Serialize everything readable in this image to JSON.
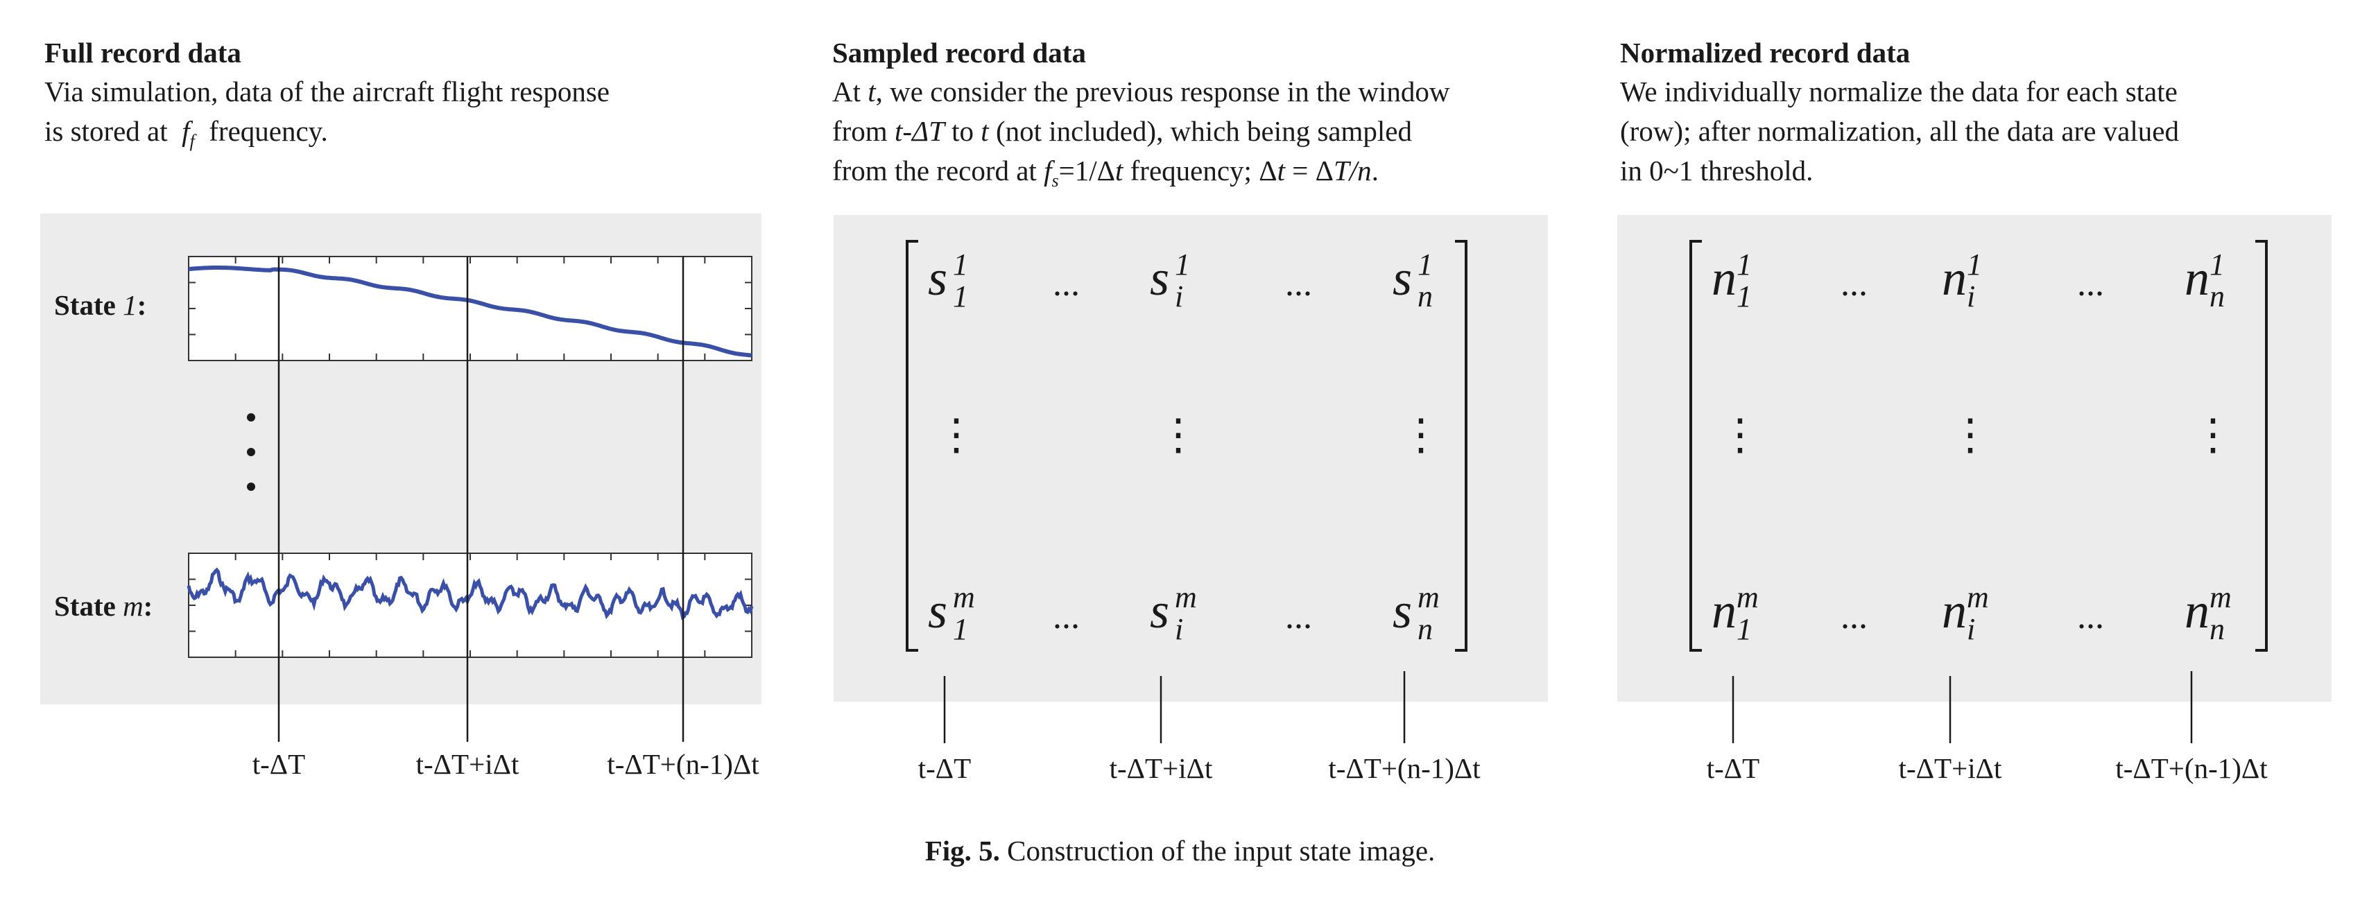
{
  "panels": {
    "full": {
      "title": "Full record data",
      "desc_line1": "Via simulation, data of the aircraft flight response",
      "desc_line2_a": "is stored at",
      "desc_line2_f": "f",
      "desc_line2_sub": "f",
      "desc_line2_b": "frequency.",
      "state1_prefix": "State",
      "state1_var": "1",
      "statem_prefix": "State",
      "statem_var": "m",
      "colon": ":"
    },
    "sampled": {
      "title": "Sampled record data",
      "desc_l1_a": "At",
      "desc_l1_t": "t",
      "desc_l1_b": ", we consider the previous response in the window",
      "desc_l2_a": "from",
      "desc_l2_t": "t",
      "desc_l2_dT": "-ΔT",
      "desc_l2_b": "to",
      "desc_l2_t2": "t",
      "desc_l2_c": "(not included), which being sampled",
      "desc_l3_a": "from the record at",
      "desc_l3_f": "f",
      "desc_l3_sub": "s",
      "desc_l3_b": "=1/Δ",
      "desc_l3_t": "t",
      "desc_l3_c": "frequency; Δ",
      "desc_l3_t2": "t",
      "desc_l3_d": "= Δ",
      "desc_l3_T": "T/n",
      "desc_l3_e": ".",
      "symbol": "s"
    },
    "normalized": {
      "title": "Normalized record data",
      "desc_line1": "We individually normalize the data for each state",
      "desc_line2": "(row); after normalization, all the data are valued",
      "desc_line3": "in 0~1 threshold.",
      "symbol": "n"
    }
  },
  "matrix": {
    "sub_first": "1",
    "sub_mid": "i",
    "sub_last": "n",
    "sup_top": "1",
    "sup_bottom": "m",
    "hdots": "...",
    "vdots": "⋮"
  },
  "time_labels": {
    "first": "t-ΔT",
    "mid": "t-ΔT+iΔt",
    "last": "t-ΔT+(n-1)Δt"
  },
  "caption": {
    "label": "Fig. 5.",
    "text": "Construction of the input state image."
  },
  "colors": {
    "curve": "#3a4fa6",
    "box_bg": "#ececec",
    "ink": "#1a1a1a"
  }
}
